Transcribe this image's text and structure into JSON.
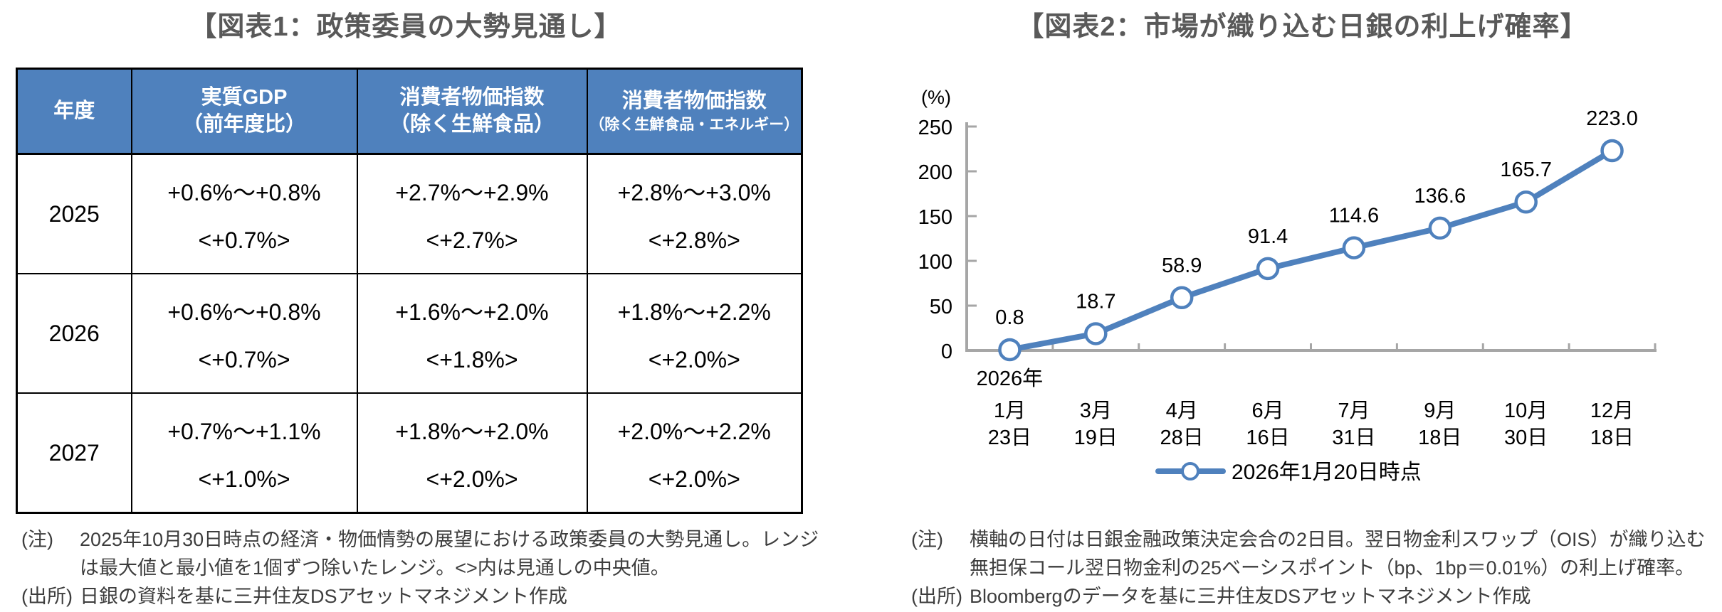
{
  "chart_data": [
    {
      "type": "table",
      "title": "【図表1：政策委員の大勢見通し】",
      "header": {
        "year": "年度",
        "cols": [
          {
            "line1": "実質GDP",
            "line2": "（前年度比）"
          },
          {
            "line1": "消費者物価指数",
            "line2": "（除く生鮮食品）"
          },
          {
            "line1": "消費者物価指数",
            "line2": "（除く生鮮食品・エネルギー）"
          }
        ]
      },
      "rows": [
        {
          "year": "2025",
          "cells": [
            {
              "range": "+0.6%～+0.8%",
              "median": "<+0.7%>"
            },
            {
              "range": "+2.7%～+2.9%",
              "median": "<+2.7%>"
            },
            {
              "range": "+2.8%～+3.0%",
              "median": "<+2.8%>"
            }
          ]
        },
        {
          "year": "2026",
          "cells": [
            {
              "range": "+0.6%～+0.8%",
              "median": "<+0.7%>"
            },
            {
              "range": "+1.6%～+2.0%",
              "median": "<+1.8%>"
            },
            {
              "range": "+1.8%～+2.2%",
              "median": "<+2.0%>"
            }
          ]
        },
        {
          "year": "2027",
          "cells": [
            {
              "range": "+0.7%～+1.1%",
              "median": "<+1.0%>"
            },
            {
              "range": "+1.8%～+2.0%",
              "median": "<+2.0%>"
            },
            {
              "range": "+2.0%～+2.2%",
              "median": "<+2.0%>"
            }
          ]
        }
      ]
    },
    {
      "type": "line",
      "title": "【図表2：市場が織り込む日銀の利上げ確率】",
      "ylabel": "(%)",
      "ylim": [
        0,
        250
      ],
      "ytick_step": 50,
      "x_year_prefix": "2026年",
      "x": [
        "1月23日",
        "3月19日",
        "4月28日",
        "6月16日",
        "7月31日",
        "9月18日",
        "10月30日",
        "12月18日"
      ],
      "x_tick_lines": [
        [
          "1月",
          "23日"
        ],
        [
          "3月",
          "19日"
        ],
        [
          "4月",
          "28日"
        ],
        [
          "6月",
          "16日"
        ],
        [
          "7月",
          "31日"
        ],
        [
          "9月",
          "18日"
        ],
        [
          "10月",
          "30日"
        ],
        [
          "12月",
          "18日"
        ]
      ],
      "series": [
        {
          "name": "2026年1月20日時点",
          "values": [
            0.8,
            18.7,
            58.9,
            91.4,
            114.6,
            136.6,
            165.7,
            223.0
          ],
          "color": "#4F81BD"
        }
      ],
      "legend_position": "bottom",
      "grid": false,
      "marker": "open-circle"
    }
  ],
  "figure1": {
    "note_label": "(注)",
    "note_text": "2025年10月30日時点の経済・物価情勢の展望における政策委員の大勢見通し。レンジは最大値と最小値を1個ずつ除いたレンジ。<>内は見通しの中央値。",
    "source_label": "(出所)",
    "source_text": "日銀の資料を基に三井住友DSアセットマネジメント作成"
  },
  "figure2": {
    "note_label": "(注)",
    "note_text": "横軸の日付は日銀金融政策決定会合の2日目。翌日物金利スワップ（OIS）が織り込む無担保コール翌日物金利の25ベーシスポイント（bp、1bp＝0.01%）の利上げ確率。",
    "source_label": "(出所)",
    "source_text": "Bloombergのデータを基に三井住友DSアセットマネジメント作成"
  },
  "colors": {
    "table_header_bg": "#4F81BD",
    "table_header_text": "#FFFFFF",
    "series_line": "#4F81BD",
    "marker_fill": "#FFFFFF",
    "axis_gray": "#A6A6A6",
    "title_gray": "#595959",
    "note_gray": "#3D3D3D",
    "border_black": "#000000"
  }
}
